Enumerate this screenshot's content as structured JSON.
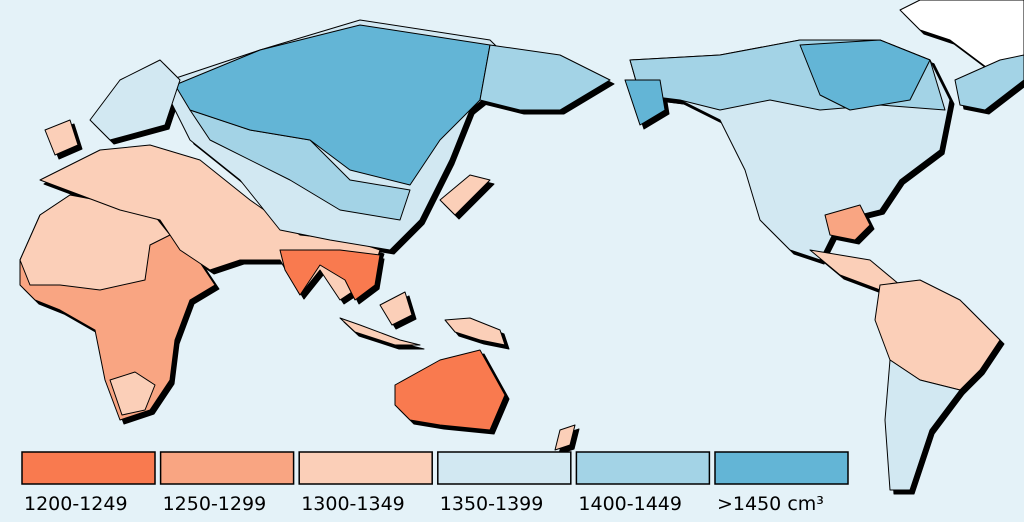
{
  "legend": [
    {
      "label": "1200-1249",
      "color": "#f97a4f"
    },
    {
      "label": "1250-1299",
      "color": "#f9a582"
    },
    {
      "label": "1300-1349",
      "color": "#fbcfb8"
    },
    {
      "label": "1350-1399",
      "color": "#d2e8f2"
    },
    {
      "label": "1400-1449",
      "color": "#a3d3e6"
    },
    {
      "label": ">1450 cm³",
      "color": "#63b5d6"
    }
  ]
}
